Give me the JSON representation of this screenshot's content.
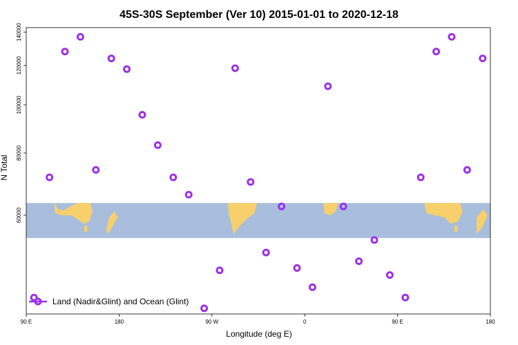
{
  "chart_data": {
    "type": "scatter",
    "title": "45S-30S September (Ver 10)   2015-01-01 to 2020-12-18",
    "xlabel": "Longitude (deg E)",
    "ylabel": "N Total",
    "x_ticks": [
      {
        "label": "90 E",
        "pos": 0
      },
      {
        "label": "180",
        "pos": 90
      },
      {
        "label": "90 W",
        "pos": 180
      },
      {
        "label": "0",
        "pos": 270
      },
      {
        "label": "90 E",
        "pos": 360
      },
      {
        "label": "180",
        "pos": 450
      }
    ],
    "y_ticks": [
      60000,
      80000,
      100000,
      120000,
      140000
    ],
    "y_scale": "log",
    "xlim": [
      0,
      450
    ],
    "ylim": [
      38000,
      143000
    ],
    "band": {
      "ymin": 54000,
      "ymax": 63500,
      "color": "#a9bedd",
      "land_color": "#f7d06b"
    },
    "legend": "Land (Nadir&Glint) and Ocean (Glint)",
    "legend_position": "bottom-left",
    "marker_color": "#9b30e8",
    "series": [
      {
        "name": "Land (Nadir&Glint) and Ocean (Glint)",
        "points": [
          [
            7.5,
            41000
          ],
          [
            22.5,
            71500
          ],
          [
            37.5,
            128000
          ],
          [
            52.5,
            137000
          ],
          [
            67.5,
            74000
          ],
          [
            82.5,
            124000
          ],
          [
            97.5,
            118000
          ],
          [
            112.5,
            95500
          ],
          [
            127.5,
            83000
          ],
          [
            142.5,
            71500
          ],
          [
            157.5,
            66000
          ],
          [
            172.5,
            39000
          ],
          [
            187.5,
            46500
          ],
          [
            202.5,
            118500
          ],
          [
            217.5,
            70000
          ],
          [
            232.5,
            50500
          ],
          [
            247.5,
            62500
          ],
          [
            262.5,
            47000
          ],
          [
            277.5,
            43000
          ],
          [
            292.5,
            109000
          ],
          [
            307.5,
            62500
          ],
          [
            322.5,
            48500
          ],
          [
            337.5,
            53500
          ],
          [
            352.5,
            45500
          ],
          [
            367.5,
            41000
          ],
          [
            382.5,
            71500
          ],
          [
            397.5,
            128000
          ],
          [
            412.5,
            137000
          ],
          [
            427.5,
            74000
          ],
          [
            442.5,
            124000
          ]
        ]
      }
    ]
  }
}
